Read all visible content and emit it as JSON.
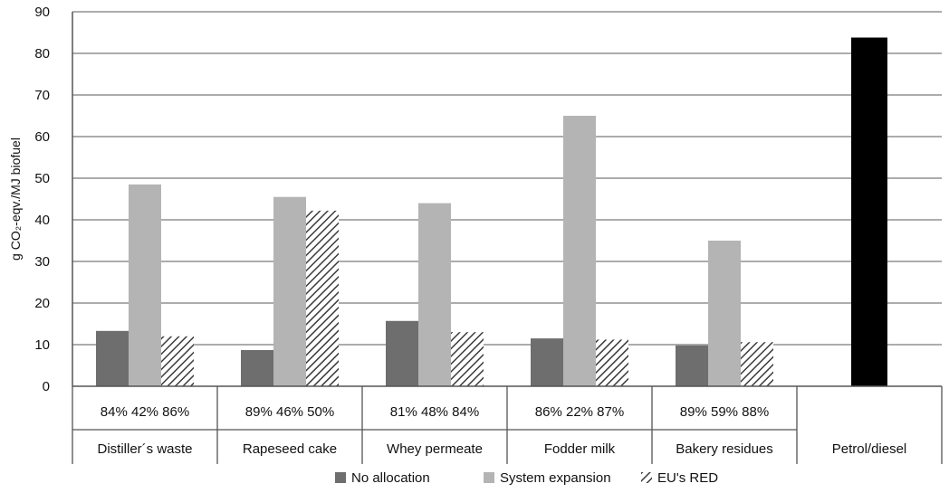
{
  "chart_data": {
    "type": "bar",
    "ylabel": "g CO₂-eqv./MJ biofuel",
    "ylim": [
      0,
      90
    ],
    "yticks": [
      0,
      10,
      20,
      30,
      40,
      50,
      60,
      70,
      80,
      90
    ],
    "grid": true,
    "legend_position": "bottom",
    "categories": [
      "Distiller´s waste",
      "Rapeseed cake",
      "Whey permeate",
      "Fodder milk",
      "Bakery residues",
      "Petrol/diesel"
    ],
    "reduction_labels": [
      "84% 42% 86%",
      "89% 46% 50%",
      "81% 48% 84%",
      "86% 22% 87%",
      "89% 59% 88%",
      ""
    ],
    "series": [
      {
        "name": "No allocation",
        "color": "#6e6e6e",
        "pattern": "solid",
        "values": [
          13.3,
          8.7,
          15.7,
          11.5,
          9.8,
          null
        ]
      },
      {
        "name": "System expansion",
        "color": "#b4b4b4",
        "pattern": "solid",
        "values": [
          48.5,
          45.5,
          44,
          65,
          35,
          null
        ]
      },
      {
        "name": "EU's RED",
        "color": "#444444",
        "pattern": "hatch",
        "values": [
          12,
          42.2,
          13,
          11.2,
          10.6,
          null
        ]
      }
    ],
    "reference_bar": {
      "category": "Petrol/diesel",
      "value": 83.8,
      "color": "#000000"
    }
  }
}
